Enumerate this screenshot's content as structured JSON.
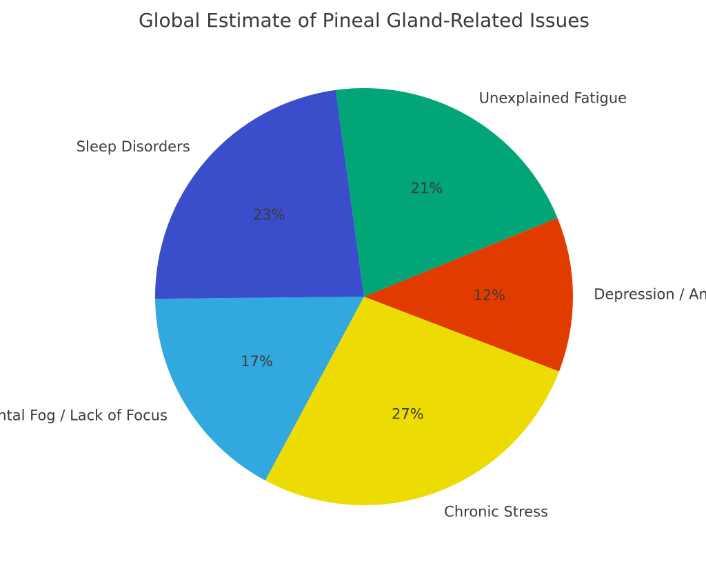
{
  "chart_data": {
    "type": "pie",
    "title": "Global Estimate of Pineal Gland-Related Issues",
    "slices": [
      {
        "label": "Depression / Anxiety",
        "value": 12,
        "pct_label": "12%",
        "color": "#e23b00"
      },
      {
        "label": "Unexplained Fatigue",
        "value": 21,
        "pct_label": "21%",
        "color": "#02a676"
      },
      {
        "label": "Sleep Disorders",
        "value": 23,
        "pct_label": "23%",
        "color": "#3a4ecb"
      },
      {
        "label": "Mental Fog / Lack of Focus",
        "value": 17,
        "pct_label": "17%",
        "color": "#31a8de"
      },
      {
        "label": "Chronic Stress",
        "value": 27,
        "pct_label": "27%",
        "color": "#ecdc03"
      }
    ],
    "start_angle_deg": -21,
    "direction": "counterclockwise"
  }
}
